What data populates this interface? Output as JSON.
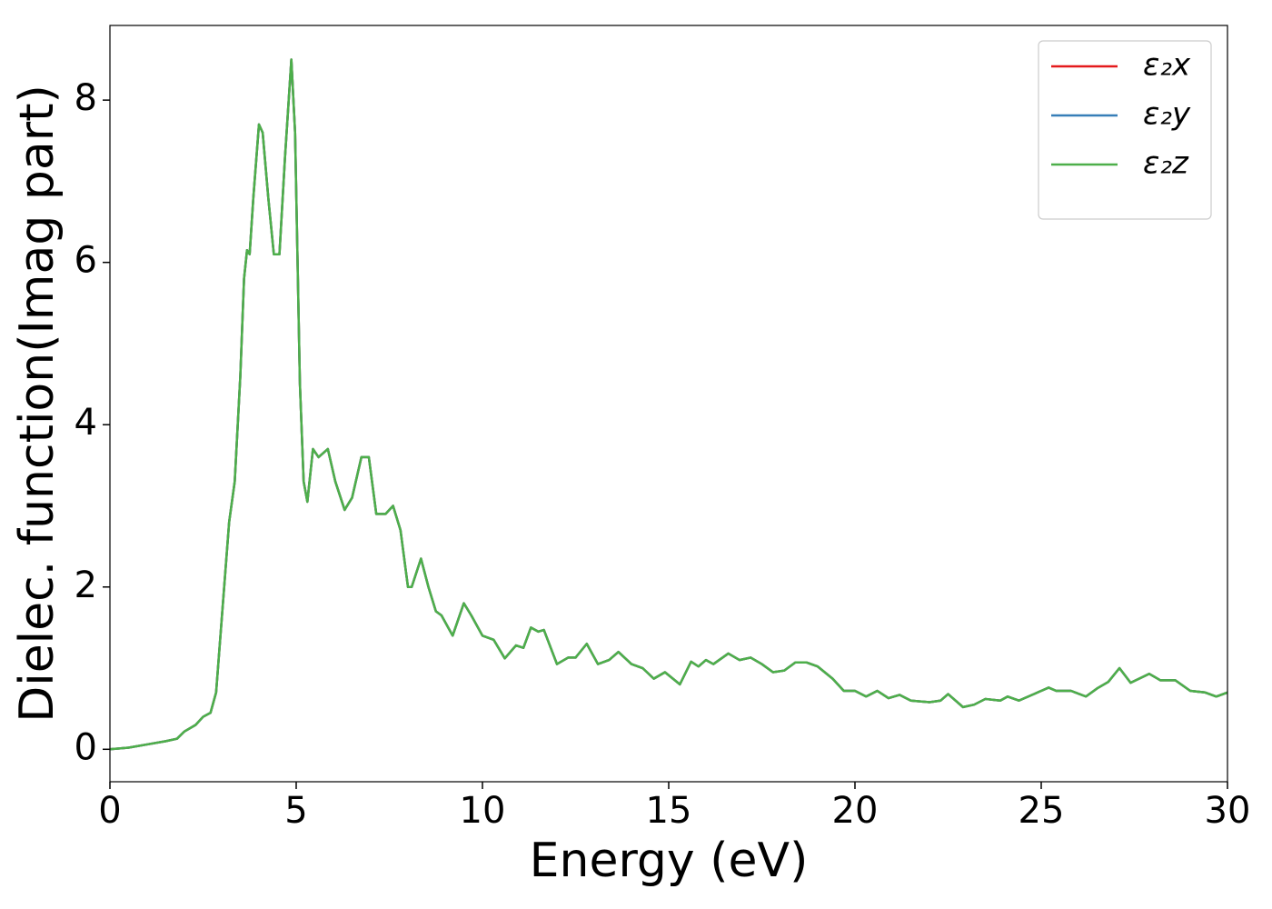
{
  "chart_data": {
    "type": "line",
    "xlabel": "Energy (eV)",
    "ylabel": "Dielec. function(Imag part)",
    "x": [
      0,
      0.5,
      1,
      1.5,
      1.8,
      2,
      2.3,
      2.5,
      2.7,
      2.85,
      3,
      3.2,
      3.35,
      3.5,
      3.6,
      3.68,
      3.75,
      3.85,
      4,
      4.1,
      4.25,
      4.4,
      4.55,
      4.7,
      4.87,
      4.97,
      5.1,
      5.2,
      5.3,
      5.45,
      5.6,
      5.85,
      6.05,
      6.3,
      6.5,
      6.75,
      6.95,
      7.15,
      7.4,
      7.6,
      7.8,
      8,
      8.1,
      8.35,
      8.55,
      8.75,
      8.9,
      9.2,
      9.5,
      9.7,
      10,
      10.3,
      10.6,
      10.9,
      11.1,
      11.3,
      11.5,
      11.65,
      12,
      12.3,
      12.5,
      12.8,
      13.1,
      13.4,
      13.65,
      14,
      14.3,
      14.6,
      14.9,
      15.3,
      15.6,
      15.8,
      16,
      16.2,
      16.6,
      16.9,
      17.2,
      17.5,
      17.8,
      18.1,
      18.4,
      18.7,
      19,
      19.4,
      19.7,
      20,
      20.3,
      20.6,
      20.9,
      21.2,
      21.5,
      22,
      22.3,
      22.5,
      22.9,
      23.2,
      23.5,
      23.9,
      24.1,
      24.4,
      24.8,
      25.2,
      25.4,
      25.8,
      26.2,
      26.5,
      26.8,
      27.1,
      27.4,
      27.9,
      28.2,
      28.6,
      29,
      29.4,
      29.7,
      30
    ],
    "series": [
      {
        "name": "ε₂x",
        "color": "#e41a1c",
        "values": [
          0,
          0.02,
          0.06,
          0.1,
          0.13,
          0.22,
          0.3,
          0.4,
          0.45,
          0.7,
          1.6,
          2.8,
          3.3,
          4.6,
          5.8,
          6.15,
          6.1,
          6.8,
          7.7,
          7.6,
          6.8,
          6.1,
          6.1,
          7.3,
          8.5,
          7.6,
          4.5,
          3.3,
          3.05,
          3.7,
          3.6,
          3.7,
          3.3,
          2.95,
          3.1,
          3.6,
          3.6,
          2.9,
          2.9,
          3.0,
          2.7,
          2.0,
          2.0,
          2.35,
          2.0,
          1.7,
          1.65,
          1.4,
          1.8,
          1.65,
          1.4,
          1.35,
          1.12,
          1.28,
          1.25,
          1.5,
          1.45,
          1.47,
          1.05,
          1.13,
          1.13,
          1.3,
          1.05,
          1.1,
          1.2,
          1.05,
          1.0,
          0.87,
          0.95,
          0.8,
          1.08,
          1.02,
          1.1,
          1.05,
          1.18,
          1.1,
          1.13,
          1.05,
          0.95,
          0.97,
          1.07,
          1.07,
          1.02,
          0.87,
          0.72,
          0.72,
          0.65,
          0.72,
          0.63,
          0.67,
          0.6,
          0.58,
          0.6,
          0.68,
          0.52,
          0.55,
          0.62,
          0.6,
          0.65,
          0.6,
          0.68,
          0.76,
          0.72,
          0.72,
          0.65,
          0.75,
          0.83,
          1.0,
          0.82,
          0.93,
          0.85,
          0.85,
          0.72,
          0.7,
          0.65,
          0.7
        ]
      },
      {
        "name": "ε₂y",
        "color": "#377eb8",
        "values": [
          0,
          0.02,
          0.06,
          0.1,
          0.13,
          0.22,
          0.3,
          0.4,
          0.45,
          0.7,
          1.6,
          2.8,
          3.3,
          4.6,
          5.8,
          6.15,
          6.1,
          6.8,
          7.7,
          7.6,
          6.8,
          6.1,
          6.1,
          7.3,
          8.5,
          7.6,
          4.5,
          3.3,
          3.05,
          3.7,
          3.6,
          3.7,
          3.3,
          2.95,
          3.1,
          3.6,
          3.6,
          2.9,
          2.9,
          3.0,
          2.7,
          2.0,
          2.0,
          2.35,
          2.0,
          1.7,
          1.65,
          1.4,
          1.8,
          1.65,
          1.4,
          1.35,
          1.12,
          1.28,
          1.25,
          1.5,
          1.45,
          1.47,
          1.05,
          1.13,
          1.13,
          1.3,
          1.05,
          1.1,
          1.2,
          1.05,
          1.0,
          0.87,
          0.95,
          0.8,
          1.08,
          1.02,
          1.1,
          1.05,
          1.18,
          1.1,
          1.13,
          1.05,
          0.95,
          0.97,
          1.07,
          1.07,
          1.02,
          0.87,
          0.72,
          0.72,
          0.65,
          0.72,
          0.63,
          0.67,
          0.6,
          0.58,
          0.6,
          0.68,
          0.52,
          0.55,
          0.62,
          0.6,
          0.65,
          0.6,
          0.68,
          0.76,
          0.72,
          0.72,
          0.65,
          0.75,
          0.83,
          1.0,
          0.82,
          0.93,
          0.85,
          0.85,
          0.72,
          0.7,
          0.65,
          0.7
        ]
      },
      {
        "name": "ε₂z",
        "color": "#4daf4a",
        "values": [
          0,
          0.02,
          0.06,
          0.1,
          0.13,
          0.22,
          0.3,
          0.4,
          0.45,
          0.7,
          1.6,
          2.8,
          3.3,
          4.6,
          5.8,
          6.15,
          6.1,
          6.8,
          7.7,
          7.6,
          6.8,
          6.1,
          6.1,
          7.3,
          8.5,
          7.6,
          4.5,
          3.3,
          3.05,
          3.7,
          3.6,
          3.7,
          3.3,
          2.95,
          3.1,
          3.6,
          3.6,
          2.9,
          2.9,
          3.0,
          2.7,
          2.0,
          2.0,
          2.35,
          2.0,
          1.7,
          1.65,
          1.4,
          1.8,
          1.65,
          1.4,
          1.35,
          1.12,
          1.28,
          1.25,
          1.5,
          1.45,
          1.47,
          1.05,
          1.13,
          1.13,
          1.3,
          1.05,
          1.1,
          1.2,
          1.05,
          1.0,
          0.87,
          0.95,
          0.8,
          1.08,
          1.02,
          1.1,
          1.05,
          1.18,
          1.1,
          1.13,
          1.05,
          0.95,
          0.97,
          1.07,
          1.07,
          1.02,
          0.87,
          0.72,
          0.72,
          0.65,
          0.72,
          0.63,
          0.67,
          0.6,
          0.58,
          0.6,
          0.68,
          0.52,
          0.55,
          0.62,
          0.6,
          0.65,
          0.6,
          0.68,
          0.76,
          0.72,
          0.72,
          0.65,
          0.75,
          0.83,
          1.0,
          0.82,
          0.93,
          0.85,
          0.85,
          0.72,
          0.7,
          0.65,
          0.7
        ]
      }
    ],
    "xlim": [
      0,
      30
    ],
    "xticks": [
      0,
      5,
      10,
      15,
      20,
      25,
      30
    ],
    "ylim": [
      -0.4,
      8.92
    ],
    "yticks": [
      0,
      2,
      4,
      6,
      8
    ],
    "grid": false,
    "legend": "upper right"
  }
}
